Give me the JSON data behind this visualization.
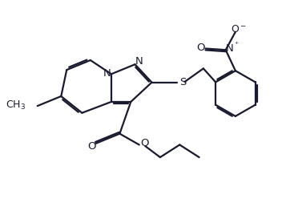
{
  "bg_color": "#ffffff",
  "line_color": "#1a1a2e",
  "bond_lw": 1.6,
  "font_size": 9.5,
  "fig_width": 3.52,
  "fig_height": 2.78,
  "dpi": 100,
  "xlim": [
    0,
    10
  ],
  "ylim": [
    0,
    8
  ]
}
